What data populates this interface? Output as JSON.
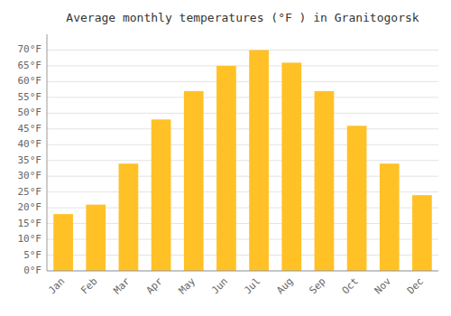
{
  "chart_data": {
    "type": "bar",
    "title": "Average monthly temperatures (°F ) in Granitogorsk",
    "categories": [
      "Jan",
      "Feb",
      "Mar",
      "Apr",
      "May",
      "Jun",
      "Jul",
      "Aug",
      "Sep",
      "Oct",
      "Nov",
      "Dec"
    ],
    "values": [
      18,
      21,
      34,
      48,
      57,
      65,
      70,
      66,
      57,
      46,
      34,
      24
    ],
    "color": "#FFC125",
    "ylim": [
      0,
      75
    ],
    "yticks": [
      {
        "value": 0,
        "label": "0°F"
      },
      {
        "value": 5,
        "label": "5°F"
      },
      {
        "value": 10,
        "label": "10°F"
      },
      {
        "value": 15,
        "label": "15°F"
      },
      {
        "value": 20,
        "label": "20°F"
      },
      {
        "value": 25,
        "label": "25°F"
      },
      {
        "value": 30,
        "label": "30°F"
      },
      {
        "value": 35,
        "label": "35°F"
      },
      {
        "value": 40,
        "label": "40°F"
      },
      {
        "value": 45,
        "label": "45°F"
      },
      {
        "value": 50,
        "label": "50°F"
      },
      {
        "value": 55,
        "label": "55°F"
      },
      {
        "value": 60,
        "label": "60°F"
      },
      {
        "value": 65,
        "label": "65°F"
      },
      {
        "value": 70,
        "label": "70°F"
      }
    ],
    "grid": true
  }
}
